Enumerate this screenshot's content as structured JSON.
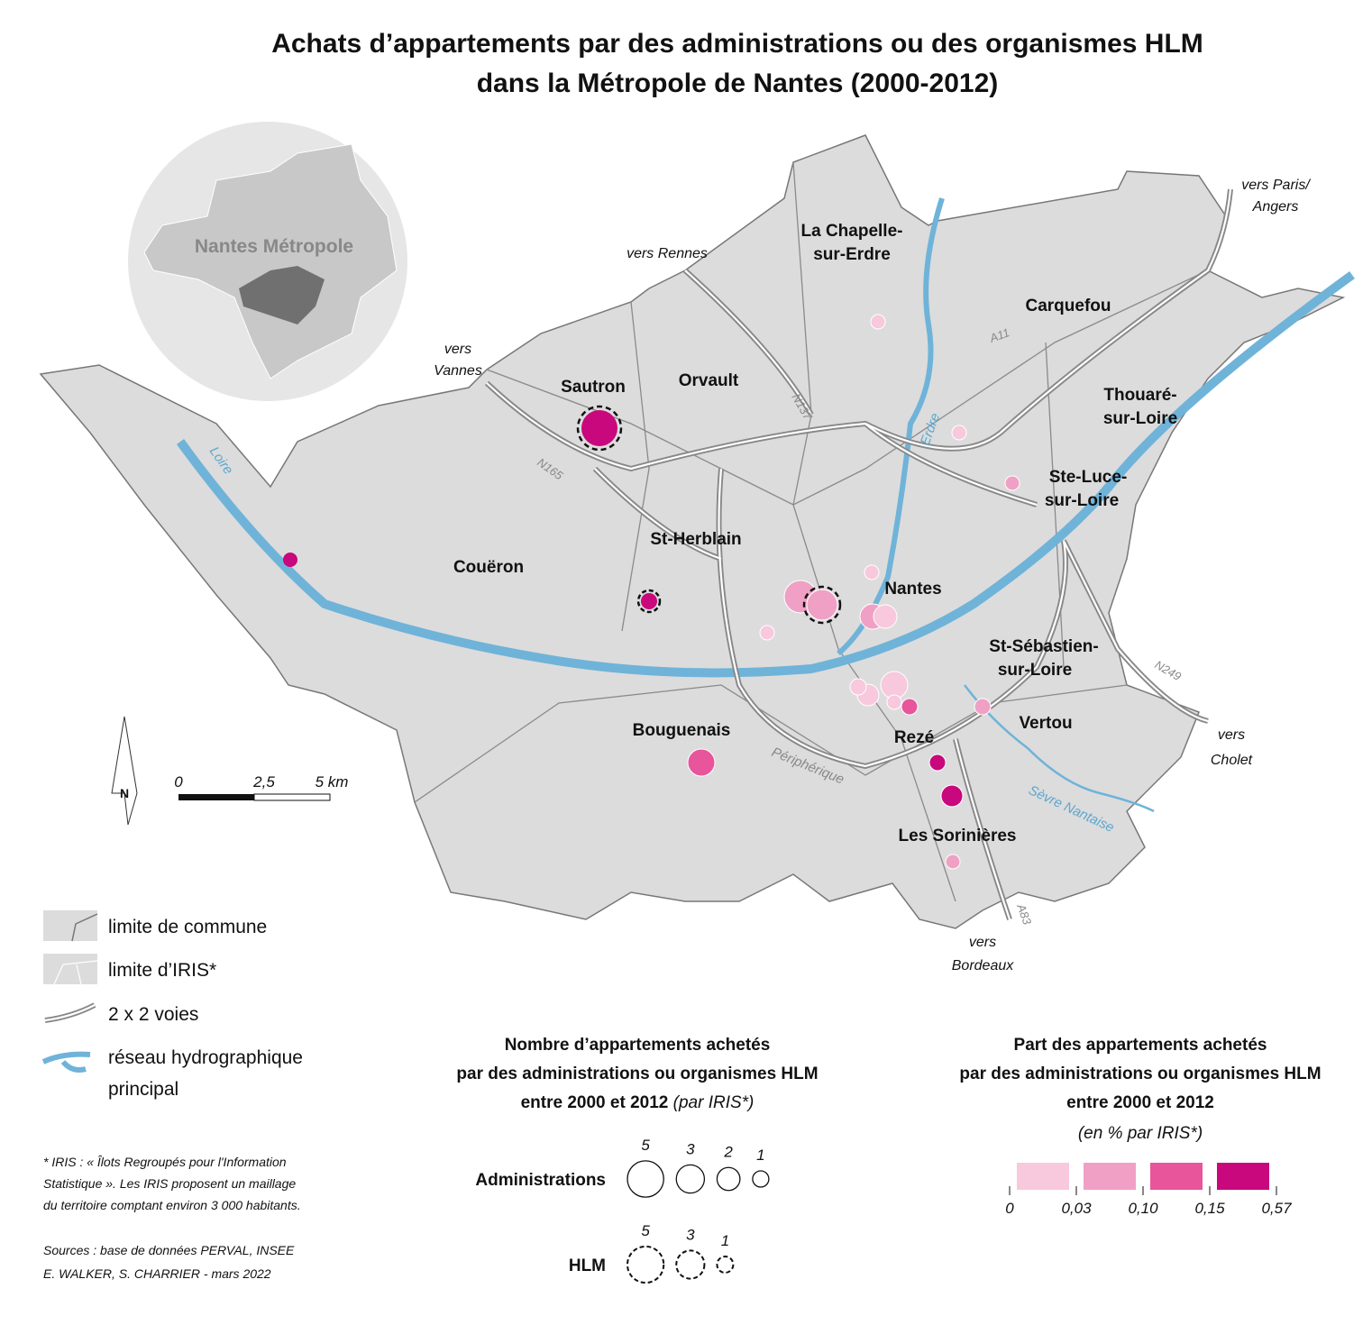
{
  "title": [
    "Achats d’appartements par des administrations ou des organismes HLM",
    "dans la Métropole de Nantes (2000-2012)"
  ],
  "inset_label": "Nantes Métropole",
  "communes": [
    [
      "Sautron"
    ],
    [
      "Orvault"
    ],
    [
      "La Chapelle-",
      "sur-Erdre"
    ],
    [
      "Carquefou"
    ],
    [
      "Thouaré-",
      "sur-Loire"
    ],
    [
      "Ste-Luce-",
      "sur-Loire"
    ],
    [
      "St-Herblain"
    ],
    [
      "Couëron"
    ],
    [
      "Nantes"
    ],
    [
      "St-Sébastien-",
      "sur-Loire"
    ],
    [
      "Bouguenais"
    ],
    [
      "Vertou"
    ],
    [
      "Rezé"
    ],
    [
      "Les Sorinières"
    ]
  ],
  "directions": [
    [
      "vers Rennes"
    ],
    [
      "vers",
      "Vannes"
    ],
    [
      "vers Paris/",
      "Angers"
    ],
    [
      "vers",
      "Cholet"
    ],
    [
      "vers",
      "Bordeaux"
    ]
  ],
  "roads": [
    "N137",
    "N165",
    "A11",
    "N249",
    "A83",
    "Périphérique"
  ],
  "rivers": [
    "Loire",
    "Erdre",
    "Sèvre Nantaise"
  ],
  "north": "N",
  "scale": [
    "0",
    "2,5",
    "5 km"
  ],
  "layers": [
    "limite de commune",
    "limite d’IRIS*",
    "2 x 2 voies",
    [
      "réseau hydrographique",
      "principal"
    ]
  ],
  "footnote": [
    "* IRIS : « Îlots Regroupés pour l'Information",
    "Statistique ». Les IRIS proposent un maillage",
    "du territoire comptant environ 3 000 habitants."
  ],
  "sources": [
    "Sources : base de données PERVAL, INSEE",
    "E. WALKER, S. CHARRIER - mars 2022"
  ],
  "size_legend": {
    "title": [
      "Nombre d’appartements achetés",
      "par des administrations ou organismes HLM",
      "entre 2000 et 2012"
    ],
    "note": "(par IRIS*)",
    "rows": [
      {
        "label": "Administrations",
        "sizes": [
          5,
          3,
          2,
          1
        ]
      },
      {
        "label": "HLM",
        "sizes": [
          5,
          3,
          1
        ]
      }
    ]
  },
  "color_legend": {
    "title": [
      "Part des appartements achetés",
      "par des administrations ou organismes HLM",
      "entre 2000 et 2012"
    ],
    "subtitle": "(en % par IRIS*)",
    "colors": [
      "#f8c8dd",
      "#f0a0c4",
      "#e8559a",
      "#c8087c"
    ],
    "breaks": [
      "0",
      "0,03",
      "0,10",
      "0,15",
      "0,57"
    ]
  }
}
